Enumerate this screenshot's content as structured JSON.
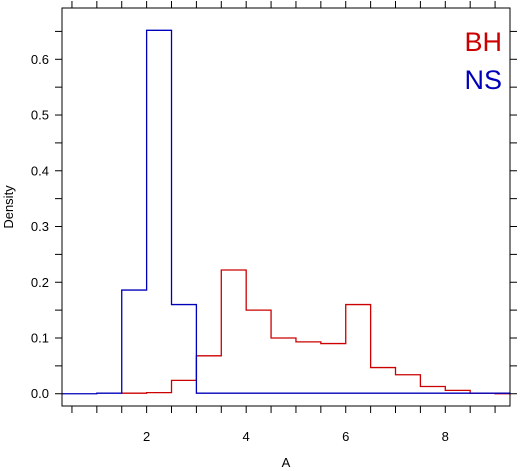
{
  "chart_data": {
    "type": "histogram",
    "xlabel": "A",
    "ylabel": "Density",
    "xlim": [
      0.3,
      9.3
    ],
    "ylim": [
      -0.022,
      0.692
    ],
    "x_ticks": [
      2,
      4,
      6,
      8
    ],
    "y_ticks": [
      0.0,
      0.1,
      0.2,
      0.3,
      0.4,
      0.5,
      0.6
    ],
    "y_tick_labels": [
      "0.0",
      "0.1",
      "0.2",
      "0.3",
      "0.4",
      "0.5",
      "0.6"
    ],
    "x_minor_ticks": [
      0.5,
      1,
      1.5,
      2,
      2.5,
      3,
      3.5,
      4,
      4.5,
      5,
      5.5,
      6,
      6.5,
      7,
      7.5,
      8,
      8.5,
      9
    ],
    "y_minor_ticks": [
      0.0,
      0.05,
      0.1,
      0.15,
      0.2,
      0.25,
      0.3,
      0.35,
      0.4,
      0.45,
      0.5,
      0.55,
      0.6,
      0.65
    ],
    "series": [
      {
        "name": "BH",
        "color": "#cc0000",
        "bin_edges": [
          1.5,
          2.0,
          2.5,
          3.0,
          3.5,
          4.0,
          4.5,
          5.0,
          5.5,
          6.0,
          6.5,
          7.0,
          7.5,
          8.0,
          8.5,
          9.0,
          9.3
        ],
        "values": [
          0.001,
          0.002,
          0.024,
          0.068,
          0.222,
          0.15,
          0.1,
          0.093,
          0.09,
          0.16,
          0.047,
          0.034,
          0.013,
          0.006,
          0.001,
          0.0
        ]
      },
      {
        "name": "NS",
        "color": "#0000bb",
        "bin_edges": [
          0.3,
          1.0,
          1.5,
          2.0,
          2.5,
          3.0,
          9.3
        ],
        "values": [
          0.0,
          0.001,
          0.186,
          0.652,
          0.16,
          0.001
        ]
      }
    ],
    "legend": {
      "placement": "top-right",
      "entries": [
        "BH",
        "NS"
      ]
    }
  }
}
